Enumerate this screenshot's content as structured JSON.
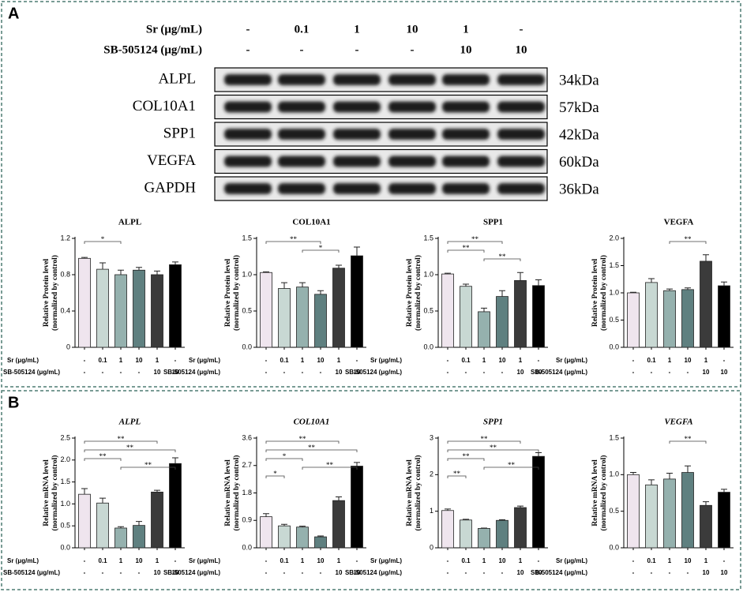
{
  "panels": [
    "A",
    "B"
  ],
  "conditions": [
    {
      "label": "Sr (μg/mL)",
      "values": [
        "-",
        "0.1",
        "1",
        "10",
        "1",
        "-"
      ]
    },
    {
      "label": "SB-505124 (μg/mL)",
      "values": [
        "-",
        "-",
        "-",
        "-",
        "10",
        "10"
      ]
    }
  ],
  "blot": {
    "rows": [
      {
        "name": "ALPL",
        "size": "34kDa"
      },
      {
        "name": "COL10A1",
        "size": "57kDa"
      },
      {
        "name": "SPP1",
        "size": "42kDa"
      },
      {
        "name": "VEGFA",
        "size": "60kDa"
      },
      {
        "name": "GAPDH",
        "size": "36kDa"
      }
    ]
  },
  "chart_data": [
    {
      "type": "bar",
      "title": "ALPL",
      "italic_title": false,
      "ylabel": [
        "Relative Protein level",
        "(normalized by control)"
      ],
      "values": [
        0.98,
        0.86,
        0.8,
        0.85,
        0.8,
        0.91
      ],
      "errors": [
        0.01,
        0.07,
        0.05,
        0.03,
        0.04,
        0.03
      ],
      "colors": [
        "#efe5ee",
        "#c8d8d3",
        "#95b1ae",
        "#5f8080",
        "#3b3b3b",
        "#000000"
      ],
      "ylim": [
        0,
        1.2
      ],
      "yticks": [
        0,
        0.4,
        0.8,
        1.2
      ],
      "annotations": [
        {
          "text": "*",
          "from": 0,
          "to": 2
        }
      ]
    },
    {
      "type": "bar",
      "title": "COL10A1",
      "italic_title": false,
      "ylabel": [
        "Relative Protein level",
        "(normalized by control)"
      ],
      "values": [
        1.03,
        0.81,
        0.83,
        0.73,
        1.09,
        1.26
      ],
      "errors": [
        0.01,
        0.08,
        0.06,
        0.05,
        0.04,
        0.12
      ],
      "colors": [
        "#efe5ee",
        "#c8d8d3",
        "#95b1ae",
        "#5f8080",
        "#3b3b3b",
        "#000000"
      ],
      "ylim": [
        0,
        1.5
      ],
      "yticks": [
        {
          "value": 0,
          "label": "0.0"
        },
        0.5,
        {
          "value": 1,
          "label": "1.0"
        },
        1.5
      ],
      "annotations": [
        {
          "text": "**",
          "from": 0,
          "to": 3
        },
        {
          "text": "*",
          "from": 2,
          "to": 4
        }
      ]
    },
    {
      "type": "bar",
      "title": "SPP1",
      "italic_title": false,
      "ylabel": [
        "Relative Protein level",
        "(normalized by control)"
      ],
      "values": [
        1.01,
        0.84,
        0.49,
        0.7,
        0.92,
        0.85
      ],
      "errors": [
        0.01,
        0.03,
        0.05,
        0.08,
        0.11,
        0.08
      ],
      "colors": [
        "#efe5ee",
        "#c8d8d3",
        "#95b1ae",
        "#5f8080",
        "#3b3b3b",
        "#000000"
      ],
      "ylim": [
        0,
        1.5
      ],
      "yticks": [
        {
          "value": 0,
          "label": "0.0"
        },
        0.5,
        {
          "value": 1,
          "label": "1.0"
        },
        1.5
      ],
      "annotations": [
        {
          "text": "**",
          "from": 0,
          "to": 3
        },
        {
          "text": "**",
          "from": 0,
          "to": 2
        },
        {
          "text": "**",
          "from": 2,
          "to": 4
        }
      ]
    },
    {
      "type": "bar",
      "title": "VEGFA",
      "italic_title": false,
      "ylabel": [
        "Relative Protein level",
        "(normalized by control)"
      ],
      "values": [
        1.0,
        1.19,
        1.04,
        1.06,
        1.58,
        1.13
      ],
      "errors": [
        0.01,
        0.07,
        0.03,
        0.03,
        0.12,
        0.07
      ],
      "colors": [
        "#efe5ee",
        "#c8d8d3",
        "#95b1ae",
        "#5f8080",
        "#3b3b3b",
        "#000000"
      ],
      "ylim": [
        0,
        2
      ],
      "yticks": [
        {
          "value": 0,
          "label": "0.0"
        },
        0.5,
        {
          "value": 1,
          "label": "1.0"
        },
        1.5,
        {
          "value": 2,
          "label": "2.0"
        }
      ],
      "annotations": [
        {
          "text": "**",
          "from": 2,
          "to": 4
        }
      ]
    },
    {
      "type": "bar",
      "title": "ALPL",
      "italic_title": true,
      "ylabel": [
        "Relative mRNA level",
        "(normalized by control)"
      ],
      "values": [
        1.22,
        1.02,
        0.45,
        0.51,
        1.27,
        1.92
      ],
      "errors": [
        0.13,
        0.11,
        0.03,
        0.09,
        0.04,
        0.13
      ],
      "colors": [
        "#efe5ee",
        "#c8d8d3",
        "#95b1ae",
        "#5f8080",
        "#3b3b3b",
        "#000000"
      ],
      "ylim": [
        0,
        2.5
      ],
      "yticks": [
        {
          "value": 0,
          "label": "0.0"
        },
        0.5,
        {
          "value": 1,
          "label": "1.0"
        },
        1.5,
        {
          "value": 2,
          "label": "2.0"
        },
        2.5
      ],
      "annotations": [
        {
          "text": "**",
          "from": 0,
          "to": 4
        },
        {
          "text": "**",
          "from": 0,
          "to": 5
        },
        {
          "text": "**",
          "from": 0,
          "to": 2
        },
        {
          "text": "**",
          "from": 2,
          "to": 5
        }
      ]
    },
    {
      "type": "bar",
      "title": "COL10A1",
      "italic_title": true,
      "ylabel": [
        "Relative mRNA level",
        "(normalized by control)"
      ],
      "values": [
        1.02,
        0.72,
        0.68,
        0.36,
        1.55,
        2.68
      ],
      "errors": [
        0.1,
        0.05,
        0.03,
        0.03,
        0.12,
        0.12
      ],
      "colors": [
        "#efe5ee",
        "#c8d8d3",
        "#95b1ae",
        "#5f8080",
        "#3b3b3b",
        "#000000"
      ],
      "ylim": [
        0,
        3.6
      ],
      "yticks": [
        {
          "value": 0,
          "label": "0.0"
        },
        0.9,
        1.8,
        2.7,
        3.6
      ],
      "annotations": [
        {
          "text": "**",
          "from": 0,
          "to": 4
        },
        {
          "text": "**",
          "from": 0,
          "to": 5
        },
        {
          "text": "*",
          "from": 0,
          "to": 2
        },
        {
          "text": "**",
          "from": 2,
          "to": 5
        },
        {
          "text": "*",
          "from": 0,
          "to": 1
        }
      ]
    },
    {
      "type": "bar",
      "title": "SPP1",
      "italic_title": true,
      "ylabel": [
        "Relative mRNA level",
        "(normalized by control)"
      ],
      "values": [
        1.02,
        0.76,
        0.53,
        0.75,
        1.1,
        2.5
      ],
      "errors": [
        0.04,
        0.02,
        0.01,
        0.02,
        0.04,
        0.1
      ],
      "colors": [
        "#efe5ee",
        "#c8d8d3",
        "#95b1ae",
        "#5f8080",
        "#3b3b3b",
        "#000000"
      ],
      "ylim": [
        0,
        3
      ],
      "yticks": [
        0,
        1,
        2,
        3
      ],
      "annotations": [
        {
          "text": "**",
          "from": 0,
          "to": 4
        },
        {
          "text": "**",
          "from": 0,
          "to": 5
        },
        {
          "text": "**",
          "from": 0,
          "to": 2
        },
        {
          "text": "**",
          "from": 2,
          "to": 5
        },
        {
          "text": "**",
          "from": 0,
          "to": 1
        }
      ]
    },
    {
      "type": "bar",
      "title": "VEGFA",
      "italic_title": true,
      "ylabel": [
        "Relative mRNA level",
        "(normalized by control)"
      ],
      "values": [
        1.0,
        0.86,
        0.94,
        1.03,
        0.58,
        0.76
      ],
      "errors": [
        0.03,
        0.07,
        0.08,
        0.09,
        0.05,
        0.04
      ],
      "colors": [
        "#efe5ee",
        "#c8d8d3",
        "#95b1ae",
        "#5f8080",
        "#3b3b3b",
        "#000000"
      ],
      "ylim": [
        0,
        1.5
      ],
      "yticks": [
        {
          "value": 0,
          "label": "0.0"
        },
        0.5,
        {
          "value": 1,
          "label": "1.0"
        },
        1.5
      ],
      "annotations": [
        {
          "text": "**",
          "from": 2,
          "to": 4
        }
      ]
    }
  ]
}
